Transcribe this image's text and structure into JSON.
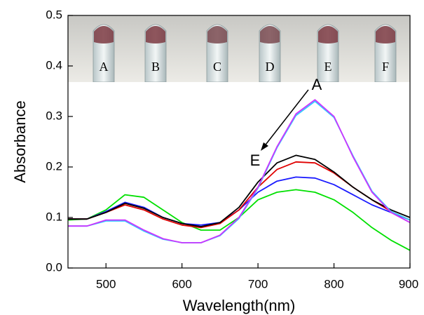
{
  "chart_data": {
    "type": "line",
    "xlabel": "Wavelength(nm)",
    "ylabel": "Absorbance",
    "x": [
      450,
      475,
      500,
      525,
      550,
      575,
      600,
      625,
      650,
      675,
      700,
      725,
      750,
      775,
      800,
      825,
      850,
      875,
      900
    ],
    "series": [
      {
        "color": "#00e000",
        "values": [
          0.095,
          0.097,
          0.115,
          0.145,
          0.14,
          0.115,
          0.09,
          0.075,
          0.075,
          0.1,
          0.135,
          0.15,
          0.155,
          0.15,
          0.135,
          0.11,
          0.08,
          0.055,
          0.035
        ]
      },
      {
        "color": "#1a1aff",
        "values": [
          0.097,
          0.097,
          0.112,
          0.13,
          0.12,
          0.1,
          0.088,
          0.085,
          0.09,
          0.115,
          0.15,
          0.172,
          0.18,
          0.178,
          0.165,
          0.145,
          0.125,
          0.11,
          0.095
        ]
      },
      {
        "color": "#e00000",
        "values": [
          0.097,
          0.097,
          0.11,
          0.125,
          0.115,
          0.097,
          0.085,
          0.08,
          0.088,
          0.115,
          0.16,
          0.195,
          0.21,
          0.208,
          0.188,
          0.16,
          0.135,
          0.112,
          0.095
        ]
      },
      {
        "color": "#000000",
        "values": [
          0.097,
          0.097,
          0.11,
          0.128,
          0.118,
          0.1,
          0.088,
          0.082,
          0.09,
          0.12,
          0.17,
          0.208,
          0.223,
          0.215,
          0.19,
          0.16,
          0.135,
          0.115,
          0.1
        ]
      },
      {
        "color": "#33ccff",
        "values": [
          0.083,
          0.083,
          0.093,
          0.093,
          0.073,
          0.057,
          0.05,
          0.05,
          0.064,
          0.098,
          0.158,
          0.238,
          0.302,
          0.33,
          0.298,
          0.222,
          0.152,
          0.112,
          0.095
        ]
      },
      {
        "color": "#cc33ff",
        "values": [
          0.083,
          0.083,
          0.095,
          0.095,
          0.075,
          0.058,
          0.05,
          0.05,
          0.065,
          0.1,
          0.16,
          0.24,
          0.305,
          0.333,
          0.3,
          0.22,
          0.15,
          0.11,
          0.09
        ]
      }
    ],
    "xlim": [
      450,
      900
    ],
    "xticks": [
      500,
      600,
      700,
      800,
      900
    ],
    "ylim": [
      0,
      0.5
    ],
    "yticks": [
      {
        "value": 0,
        "label": "0.0"
      },
      0.1,
      0.2,
      0.3,
      0.4,
      0.5
    ],
    "annotations": [
      "A",
      "E"
    ],
    "photo_labels": [
      "A",
      "B",
      "C",
      "D",
      "E",
      "F"
    ]
  }
}
